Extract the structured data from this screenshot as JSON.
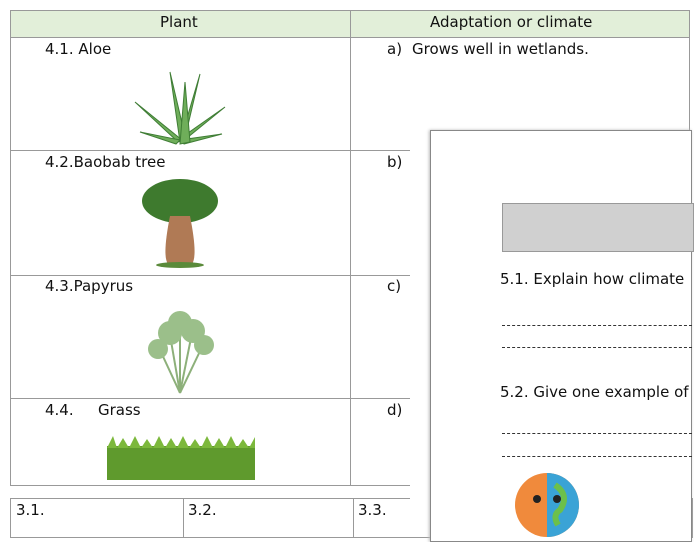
{
  "table": {
    "header": [
      "Plant",
      "Adaptation or climate"
    ],
    "rows": [
      [
        "4.1. Aloe",
        "a)",
        "Grows well in wetlands."
      ],
      [
        "4.2.Baobab tree",
        "b)"
      ],
      [
        "4.3.Papyrus",
        "c)"
      ],
      [
        "4.4.",
        "Grass",
        "d)"
      ]
    ]
  },
  "bottom_table": {
    "cells": [
      "3.1.",
      "3.2.",
      "3.3."
    ]
  },
  "overlay": {
    "questions": [
      "5.1. Explain how climate",
      "5.2. Give one example of"
    ]
  }
}
